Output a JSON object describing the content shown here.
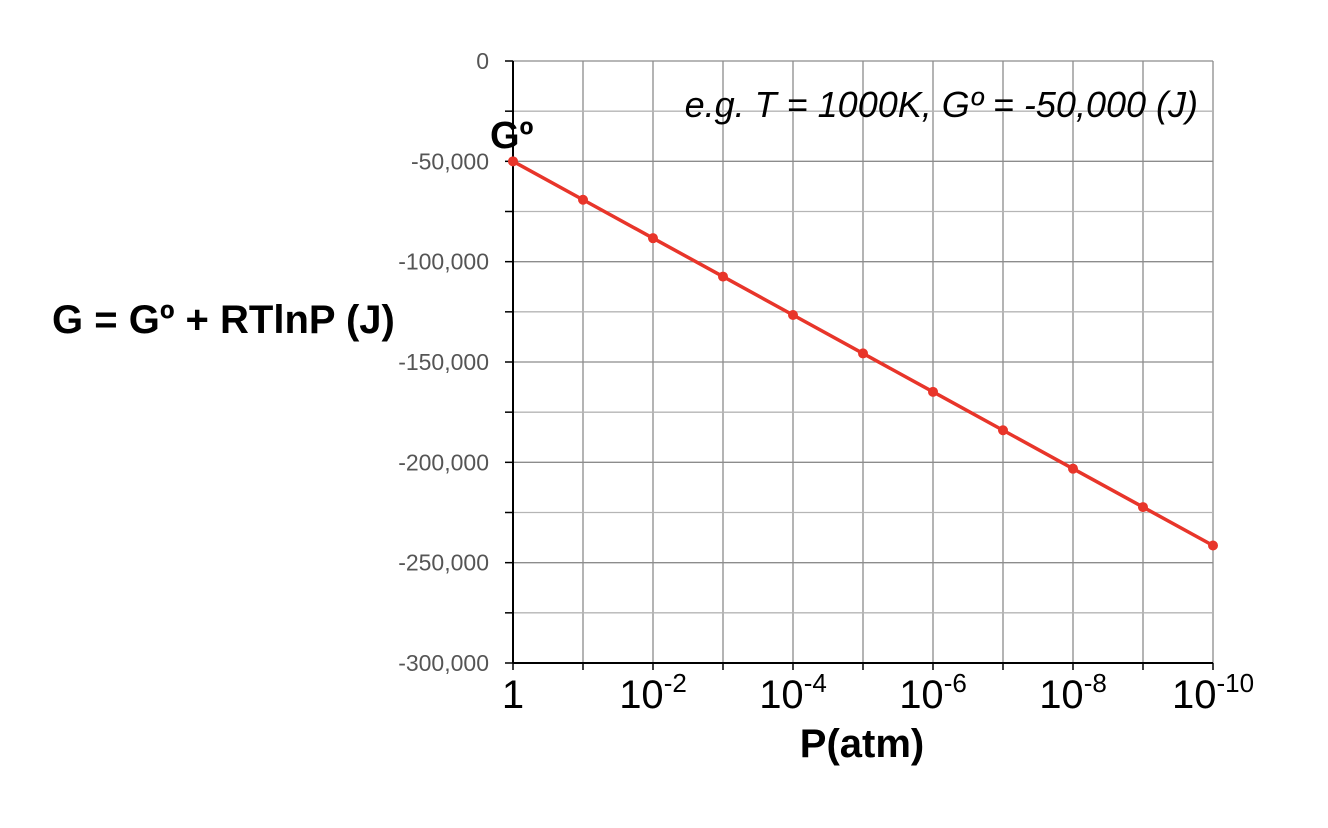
{
  "chart_data": {
    "type": "line",
    "title": "",
    "ylabel": "G = Gº + RTlnP (J)",
    "xlabel": "P(atm)",
    "annotation": "e.g. T = 1000K, Gº = -50,000 (J)",
    "point_label": "Gº",
    "ylim": [
      -300000,
      0
    ],
    "yticks": [
      0,
      -50000,
      -100000,
      -150000,
      -200000,
      -250000,
      -300000
    ],
    "ytick_labels": [
      "0",
      "-50,000",
      "-100,000",
      "-150,000",
      "-200,000",
      "-250,000",
      "-300,000"
    ],
    "xscale": "log (decreasing)",
    "xticks": [
      {
        "base": "1",
        "exp": ""
      },
      {
        "base": "10",
        "exp": "-2"
      },
      {
        "base": "10",
        "exp": "-4"
      },
      {
        "base": "10",
        "exp": "-6"
      },
      {
        "base": "10",
        "exp": "-8"
      },
      {
        "base": "10",
        "exp": "-10"
      }
    ],
    "grid": true,
    "series": [
      {
        "color": "#e8352a",
        "x": [
          "1",
          "1e-1",
          "1e-2",
          "1e-3",
          "1e-4",
          "1e-5",
          "1e-6",
          "1e-7",
          "1e-8",
          "1e-9",
          "1e-10"
        ],
        "values": [
          -50000,
          -69145,
          -88290,
          -107435,
          -126580,
          -145725,
          -164870,
          -184015,
          -203160,
          -222305,
          -241450
        ]
      }
    ]
  }
}
